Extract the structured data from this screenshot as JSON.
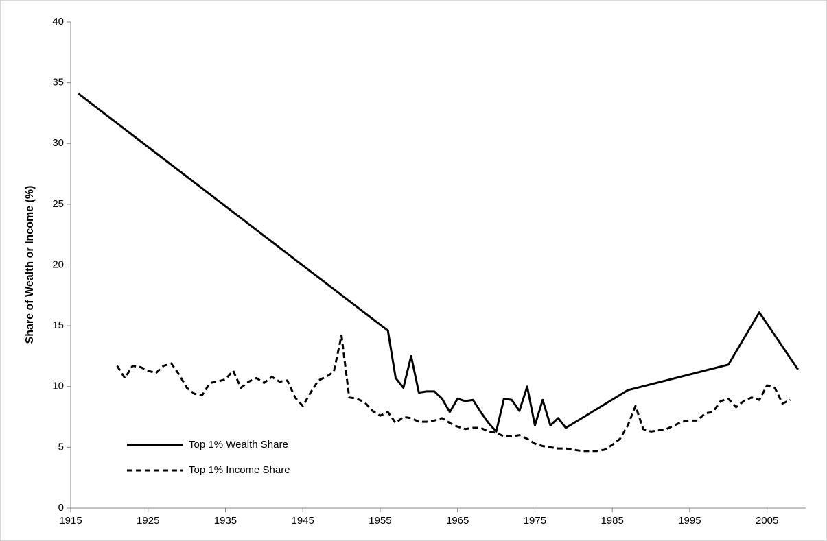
{
  "chart_data": {
    "type": "line",
    "y_label": "Share of Wealth or Income (%)",
    "xlim": [
      1915,
      2010
    ],
    "xticks": [
      1915,
      1925,
      1935,
      1945,
      1955,
      1965,
      1975,
      1985,
      1995,
      2005
    ],
    "ylim": [
      0,
      40
    ],
    "yticks": [
      0,
      5,
      10,
      15,
      20,
      25,
      30,
      35,
      40
    ],
    "legend": "bottom-left",
    "series": [
      {
        "name": "Top 1% Wealth Share",
        "color": "#000000",
        "line_style": "solid",
        "x": [
          1916,
          1956,
          1957,
          1958,
          1959,
          1960,
          1961,
          1962,
          1963,
          1964,
          1965,
          1966,
          1967,
          1968,
          1969,
          1970,
          1971,
          1972,
          1973,
          1974,
          1975,
          1976,
          1977,
          1978,
          1979,
          1987,
          2000,
          2004,
          2009
        ],
        "values": [
          34.1,
          14.6,
          10.7,
          9.9,
          12.5,
          9.5,
          9.6,
          9.6,
          9.0,
          7.9,
          9.0,
          8.8,
          8.9,
          7.9,
          7.0,
          6.3,
          9.0,
          8.9,
          8.0,
          10.0,
          6.8,
          8.9,
          6.8,
          7.4,
          6.6,
          9.7,
          11.8,
          16.1,
          11.4
        ]
      },
      {
        "name": "Top 1% Income Share",
        "color": "#000000",
        "line_style": "dashed",
        "x": [
          1921,
          1922,
          1923,
          1924,
          1925,
          1926,
          1927,
          1928,
          1929,
          1930,
          1931,
          1932,
          1933,
          1934,
          1935,
          1936,
          1937,
          1938,
          1939,
          1940,
          1941,
          1942,
          1943,
          1944,
          1945,
          1946,
          1947,
          1948,
          1949,
          1950,
          1951,
          1952,
          1953,
          1954,
          1955,
          1956,
          1957,
          1958,
          1959,
          1960,
          1961,
          1962,
          1963,
          1964,
          1965,
          1966,
          1967,
          1968,
          1969,
          1970,
          1971,
          1972,
          1973,
          1974,
          1975,
          1976,
          1977,
          1978,
          1979,
          1980,
          1981,
          1982,
          1983,
          1984,
          1985,
          1986,
          1987,
          1988,
          1989,
          1990,
          1991,
          1992,
          1993,
          1994,
          1995,
          1996,
          1997,
          1998,
          1999,
          2000,
          2001,
          2002,
          2003,
          2004,
          2005,
          2006,
          2007,
          2008
        ],
        "values": [
          11.7,
          10.7,
          11.7,
          11.6,
          11.3,
          11.1,
          11.7,
          11.9,
          11.0,
          9.9,
          9.4,
          9.3,
          10.3,
          10.4,
          10.6,
          11.3,
          9.9,
          10.4,
          10.7,
          10.3,
          10.8,
          10.4,
          10.5,
          9.1,
          8.4,
          9.5,
          10.5,
          10.8,
          11.2,
          14.2,
          9.1,
          9.0,
          8.7,
          8.0,
          7.6,
          7.9,
          7.0,
          7.5,
          7.4,
          7.1,
          7.1,
          7.2,
          7.4,
          7.0,
          6.7,
          6.5,
          6.6,
          6.6,
          6.3,
          6.2,
          5.9,
          5.9,
          6.0,
          5.7,
          5.3,
          5.1,
          5.0,
          4.9,
          4.9,
          4.8,
          4.7,
          4.7,
          4.7,
          4.8,
          5.2,
          5.7,
          6.8,
          8.4,
          6.5,
          6.3,
          6.4,
          6.5,
          6.8,
          7.1,
          7.2,
          7.2,
          7.8,
          7.9,
          8.8,
          9.0,
          8.3,
          8.8,
          9.1,
          8.9,
          10.1,
          9.9,
          8.6,
          8.9
        ]
      }
    ]
  }
}
